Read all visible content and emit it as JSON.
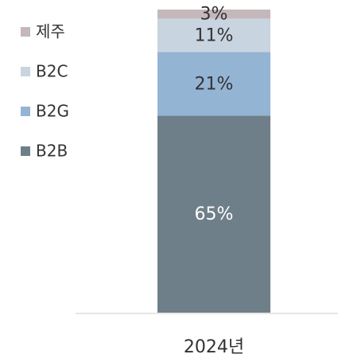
{
  "chart_data": {
    "type": "stacked_bar",
    "categories": [
      "2024년"
    ],
    "series": [
      {
        "name": "B2B",
        "color": "#6f7f8a",
        "values": [
          65
        ],
        "value_labels": [
          "65%"
        ]
      },
      {
        "name": "B2G",
        "color": "#94b4d4",
        "values": [
          21
        ],
        "value_labels": [
          "21%"
        ]
      },
      {
        "name": "B2C",
        "color": "#c8d4e0",
        "values": [
          11
        ],
        "value_labels": [
          "11%"
        ]
      },
      {
        "name": "제주",
        "color": "#c4b8ba",
        "values": [
          3
        ],
        "value_labels": [
          "3%"
        ]
      }
    ],
    "ylim": [
      0,
      100
    ]
  }
}
